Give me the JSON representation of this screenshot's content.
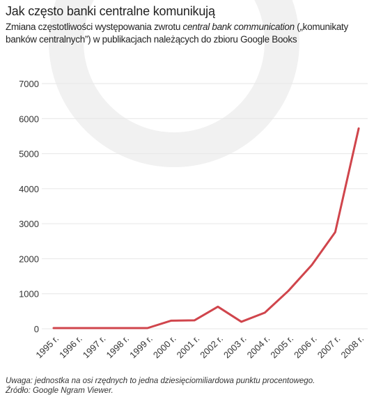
{
  "header": {
    "title": "Jak często banki centralne komunikują",
    "subtitle_before": "Zmiana częstotliwości występowania zwrotu ",
    "subtitle_phrase": "central bank communication",
    "subtitle_after": " („komunikaty banków centralnych”) w publikacjach należących do zbioru Google Books"
  },
  "footer": {
    "note": "Uwaga: jednostka na osi rzędnych to jedna dziesięciomiliardowa punktu procentowego.",
    "source": "Źródło: Google Ngram Viewer."
  },
  "colors": {
    "line": "#d0454c",
    "grid": "#e6e6e6",
    "watermark": "#f1f1f1"
  },
  "chart_data": {
    "type": "line",
    "categories": [
      "1995 r.",
      "1996 r.",
      "1997 r.",
      "1998 r.",
      "1999 r.",
      "2000 r.",
      "2001 r.",
      "2002 r.",
      "2003 r.",
      "2004 r.",
      "2005 r.",
      "2006 r.",
      "2007 r.",
      "2008 r."
    ],
    "values": [
      20,
      20,
      20,
      20,
      20,
      230,
      240,
      630,
      200,
      460,
      1080,
      1820,
      2760,
      5720
    ],
    "yticks": [
      0,
      1000,
      2000,
      3000,
      4000,
      5000,
      6000,
      7000
    ],
    "ylim": [
      0,
      7000
    ],
    "grid": true
  }
}
